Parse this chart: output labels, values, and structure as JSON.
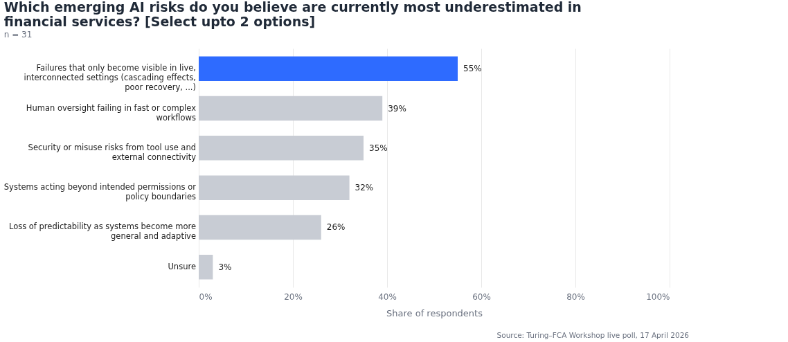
{
  "chart_data": {
    "type": "bar",
    "orientation": "horizontal",
    "title": "Which emerging AI risks do you believe are currently most underestimated in financial services? [Select upto 2 options]",
    "subtitle": "n = 31",
    "xlabel": "Share of respondents",
    "categories": [
      "Failures that only become visible in live, interconnected settings (cascading effects, poor recovery, ...)",
      "Human oversight failing in fast or complex workflows",
      "Security or misuse risks from tool use and external connectivity",
      "Systems acting beyond intended permissions or policy boundaries",
      "Loss of predictability as systems become more general and adaptive",
      "Unsure"
    ],
    "values": [
      55,
      39,
      35,
      32,
      26,
      3
    ],
    "colors": [
      "#2e6bff",
      "#c8ccd4",
      "#c8ccd4",
      "#c8ccd4",
      "#c8ccd4",
      "#c8ccd4"
    ],
    "value_labels": [
      "55%",
      "39%",
      "35%",
      "32%",
      "26%",
      "3%"
    ],
    "xlim": [
      0,
      100
    ],
    "xticks": [
      {
        "value": 0,
        "label": "0%"
      },
      {
        "value": 20,
        "label": "20%"
      },
      {
        "value": 40,
        "label": "40%"
      },
      {
        "value": 60,
        "label": "60%"
      },
      {
        "value": 80,
        "label": "80%"
      },
      {
        "value": 100,
        "label": "100%"
      }
    ],
    "grid": "x",
    "annotations": [
      "Source: Turing–FCA Workshop live poll, 17 April 2026"
    ]
  }
}
